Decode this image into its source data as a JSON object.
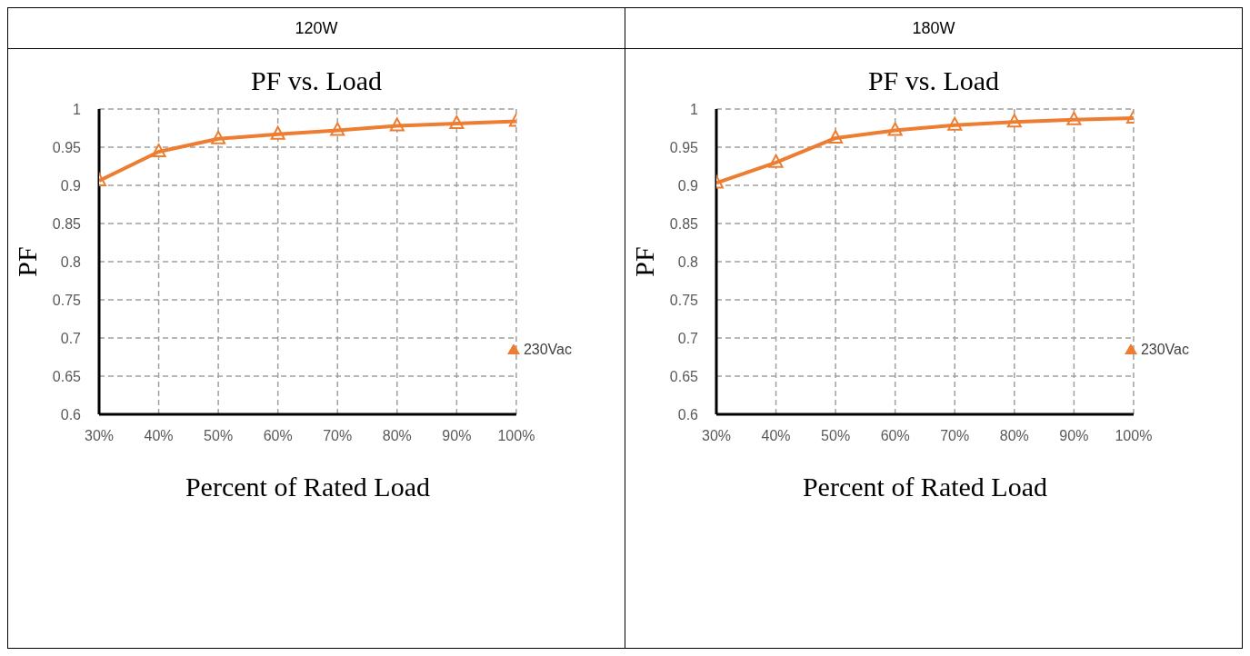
{
  "chart_data": [
    {
      "type": "line",
      "title": "120W",
      "subtitle": "PF vs. Load",
      "xlabel": "Percent of Rated Load",
      "ylabel": "PF",
      "x": [
        30,
        40,
        50,
        60,
        70,
        80,
        90,
        100
      ],
      "series": [
        {
          "name": "230Vac",
          "color": "#ed7d31",
          "values": [
            0.906,
            0.944,
            0.961,
            0.967,
            0.972,
            0.978,
            0.981,
            0.984
          ]
        }
      ],
      "xlim": [
        30,
        100
      ],
      "xticks": [
        {
          "value": 30,
          "label": "30%"
        },
        {
          "value": 40,
          "label": "40%"
        },
        {
          "value": 50,
          "label": "50%"
        },
        {
          "value": 60,
          "label": "60%"
        },
        {
          "value": 70,
          "label": "70%"
        },
        {
          "value": 80,
          "label": "80%"
        },
        {
          "value": 90,
          "label": "90%"
        },
        {
          "value": 100,
          "label": "100%"
        }
      ],
      "ylim": [
        0.6,
        1
      ],
      "yticks": [
        0.6,
        0.65,
        0.7,
        0.75,
        0.8,
        0.85,
        0.9,
        0.95,
        1
      ],
      "grid": true,
      "legend": "right",
      "marker": "triangle",
      "line_style": "solid"
    },
    {
      "type": "line",
      "title": "180W",
      "subtitle": "PF vs. Load",
      "xlabel": "Percent of Rated Load",
      "ylabel": "PF",
      "x": [
        30,
        40,
        50,
        60,
        70,
        80,
        90,
        100
      ],
      "series": [
        {
          "name": "230Vac",
          "color": "#ed7d31",
          "values": [
            0.903,
            0.93,
            0.962,
            0.972,
            0.979,
            0.983,
            0.986,
            0.988
          ]
        }
      ],
      "xlim": [
        30,
        100
      ],
      "xticks": [
        {
          "value": 30,
          "label": "30%"
        },
        {
          "value": 40,
          "label": "40%"
        },
        {
          "value": 50,
          "label": "50%"
        },
        {
          "value": 60,
          "label": "60%"
        },
        {
          "value": 70,
          "label": "70%"
        },
        {
          "value": 80,
          "label": "80%"
        },
        {
          "value": 90,
          "label": "90%"
        },
        {
          "value": 100,
          "label": "100%"
        }
      ],
      "ylim": [
        0.6,
        1
      ],
      "yticks": [
        0.6,
        0.65,
        0.7,
        0.75,
        0.8,
        0.85,
        0.9,
        0.95,
        1
      ],
      "grid": true,
      "legend": "right",
      "marker": "triangle",
      "line_style": "solid"
    }
  ]
}
